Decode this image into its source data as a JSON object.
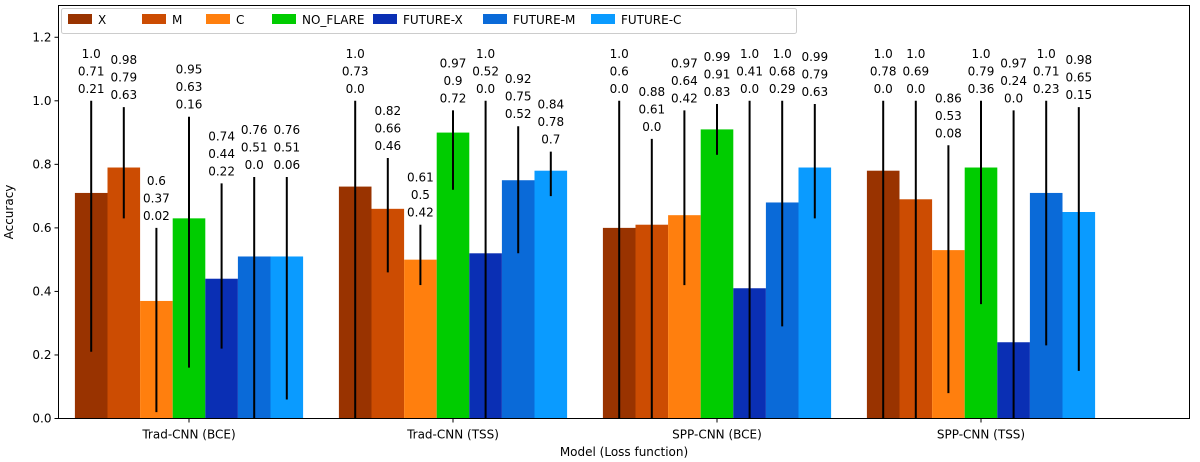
{
  "chart_data": {
    "type": "bar",
    "title": "",
    "xlabel": "Model (Loss function)",
    "ylabel": "Accuracy",
    "ylim": [
      0,
      1.3
    ],
    "yticks": [
      "0.0",
      "0.2",
      "0.4",
      "0.6",
      "0.8",
      "1.0",
      "1.2"
    ],
    "categories": [
      "Trad-CNN (BCE)",
      "Trad-CNN (TSS)",
      "SPP-CNN (BCE)",
      "SPP-CNN (TSS)"
    ],
    "legend_position": "top-left",
    "series": [
      {
        "name": "X",
        "color": "#993300",
        "values": [
          0.71,
          0.73,
          0.6,
          0.78
        ],
        "max": [
          1.0,
          1.0,
          1.0,
          1.0
        ],
        "min": [
          0.21,
          0.0,
          0.0,
          0.0
        ],
        "labels": [
          [
            "1.0",
            "0.71",
            "0.21"
          ],
          [
            "1.0",
            "0.73",
            "0.0"
          ],
          [
            "1.0",
            "0.6",
            "0.0"
          ],
          [
            "1.0",
            "0.78",
            "0.0"
          ]
        ]
      },
      {
        "name": "M",
        "color": "#CC4C02",
        "values": [
          0.79,
          0.66,
          0.61,
          0.69
        ],
        "max": [
          0.98,
          0.82,
          0.88,
          1.0
        ],
        "min": [
          0.63,
          0.46,
          0.0,
          0.0
        ],
        "labels": [
          [
            "0.98",
            "0.79",
            "0.63"
          ],
          [
            "0.82",
            "0.66",
            "0.46"
          ],
          [
            "0.88",
            "0.61",
            "0.0"
          ],
          [
            "1.0",
            "0.69",
            "0.0"
          ]
        ]
      },
      {
        "name": "C",
        "color": "#FF7F0E",
        "values": [
          0.37,
          0.5,
          0.64,
          0.53
        ],
        "max": [
          0.6,
          0.61,
          0.97,
          0.86
        ],
        "min": [
          0.02,
          0.42,
          0.42,
          0.08
        ],
        "labels": [
          [
            "0.6",
            "0.37",
            "0.02"
          ],
          [
            "0.61",
            "0.5",
            "0.42"
          ],
          [
            "0.97",
            "0.64",
            "0.42"
          ],
          [
            "0.86",
            "0.53",
            "0.08"
          ]
        ]
      },
      {
        "name": "NO_FLARE",
        "color": "#00CC00",
        "values": [
          0.63,
          0.9,
          0.91,
          0.79
        ],
        "max": [
          0.95,
          0.97,
          0.99,
          1.0
        ],
        "min": [
          0.16,
          0.72,
          0.83,
          0.36
        ],
        "labels": [
          [
            "0.95",
            "0.63",
            "0.16"
          ],
          [
            "0.97",
            "0.9",
            "0.72"
          ],
          [
            "0.99",
            "0.91",
            "0.83"
          ],
          [
            "1.0",
            "0.79",
            "0.36"
          ]
        ]
      },
      {
        "name": "FUTURE-X",
        "color": "#0A2FB4",
        "values": [
          0.44,
          0.52,
          0.41,
          0.24
        ],
        "max": [
          0.74,
          1.0,
          1.0,
          0.97
        ],
        "min": [
          0.22,
          0.0,
          0.0,
          0.0
        ],
        "labels": [
          [
            "0.74",
            "0.44",
            "0.22"
          ],
          [
            "1.0",
            "0.52",
            "0.0"
          ],
          [
            "1.0",
            "0.41",
            "0.0"
          ],
          [
            "0.97",
            "0.24",
            "0.0"
          ]
        ]
      },
      {
        "name": "FUTURE-M",
        "color": "#0A6AD8",
        "values": [
          0.51,
          0.75,
          0.68,
          0.71
        ],
        "max": [
          0.76,
          0.92,
          1.0,
          1.0
        ],
        "min": [
          0.0,
          0.52,
          0.29,
          0.23
        ],
        "labels": [
          [
            "0.76",
            "0.51",
            "0.0"
          ],
          [
            "0.92",
            "0.75",
            "0.52"
          ],
          [
            "1.0",
            "0.68",
            "0.29"
          ],
          [
            "1.0",
            "0.71",
            "0.23"
          ]
        ]
      },
      {
        "name": "FUTURE-C",
        "color": "#0A9BFF",
        "values": [
          0.51,
          0.78,
          0.79,
          0.65
        ],
        "max": [
          0.76,
          0.84,
          0.99,
          0.98
        ],
        "min": [
          0.06,
          0.7,
          0.63,
          0.15
        ],
        "labels": [
          [
            "0.76",
            "0.51",
            "0.06"
          ],
          [
            "0.84",
            "0.78",
            "0.7"
          ],
          [
            "0.99",
            "0.79",
            "0.63"
          ],
          [
            "0.98",
            "0.65",
            "0.15"
          ]
        ]
      }
    ]
  }
}
